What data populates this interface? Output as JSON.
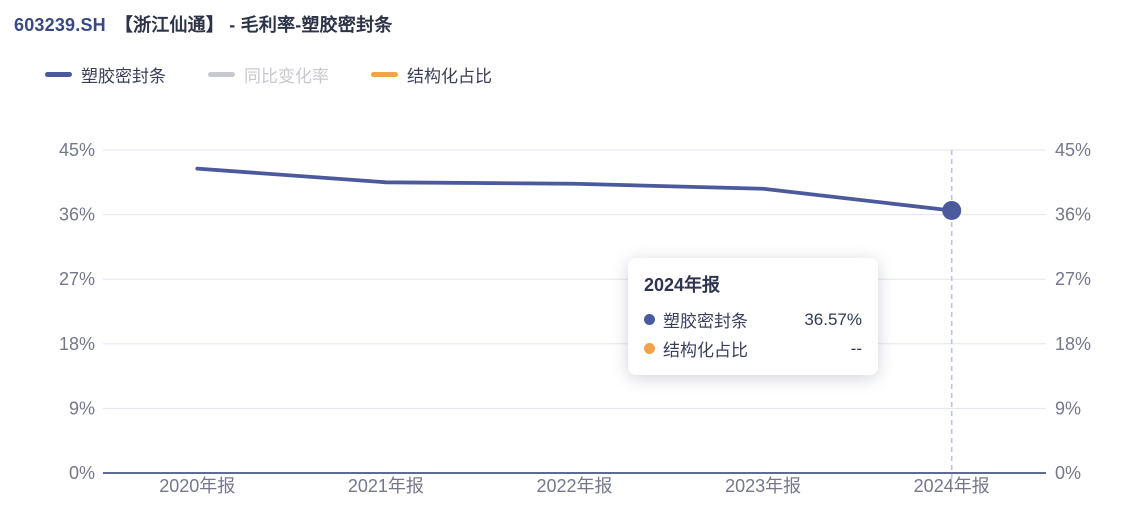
{
  "header": {
    "ticker": "603239.SH",
    "title_rest": "【浙江仙通】 - 毛利率-塑胶密封条"
  },
  "legend": {
    "items": [
      {
        "label": "塑胶密封条",
        "color": "#4B5A9D",
        "active": true
      },
      {
        "label": "同比变化率",
        "color": "#C7C9CE",
        "active": false
      },
      {
        "label": "结构化占比",
        "color": "#F2A24D",
        "active": true
      }
    ]
  },
  "chart_data": {
    "type": "line",
    "title": "毛利率-塑胶密封条",
    "categories": [
      "2020年报",
      "2021年报",
      "2022年报",
      "2023年报",
      "2024年报"
    ],
    "series": [
      {
        "name": "塑胶密封条",
        "color": "#4B5A9D",
        "values": [
          42.4,
          40.5,
          40.3,
          39.6,
          36.57
        ]
      }
    ],
    "legend_entries": [
      "塑胶密封条",
      "同比变化率",
      "结构化占比"
    ],
    "ylim": [
      0,
      45
    ],
    "yticks": [
      45,
      36,
      27,
      18,
      9,
      0
    ],
    "ytick_suffix": "%",
    "dual_axis": true,
    "grid": true,
    "legend_position": "top-left",
    "highlight_category": "2024年报",
    "highlight_value": 36.57
  },
  "tooltip": {
    "title": "2024年报",
    "rows": [
      {
        "label": "塑胶密封条",
        "value": "36.57%",
        "marker_color": "#4B5A9D"
      },
      {
        "label": "结构化占比",
        "value": "--",
        "marker_color": "#F2A24D"
      }
    ]
  },
  "colors": {
    "series_line": "#4B5A9D",
    "grid_line": "#E1E5F1",
    "axis_line": "#5E6B99",
    "axis_label": "#75788A",
    "crosshair": "#B7C5E8",
    "title_text": "#2E3448"
  }
}
